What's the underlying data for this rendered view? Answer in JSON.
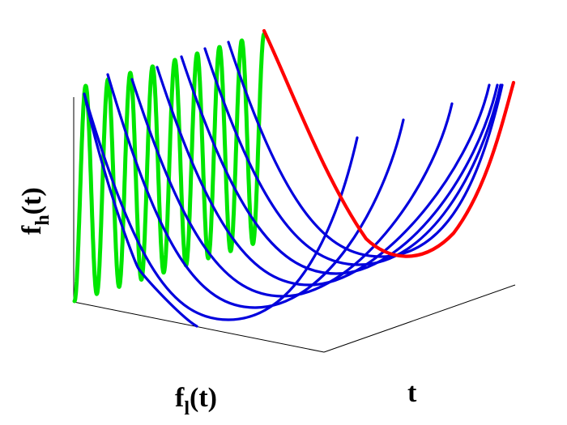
{
  "labels": {
    "vertical": "f",
    "vertical_sub": "h",
    "vertical_arg": "(t)",
    "left_base": "f",
    "left_base_sub": "l",
    "left_base_arg": "(t)",
    "right_base": "t"
  },
  "colors": {
    "oscillating_curve": "#00e600",
    "envelope_curve": "#ff0000",
    "family_curves": "#0000dd",
    "axes": "#000000"
  },
  "family_curve_count": 8
}
